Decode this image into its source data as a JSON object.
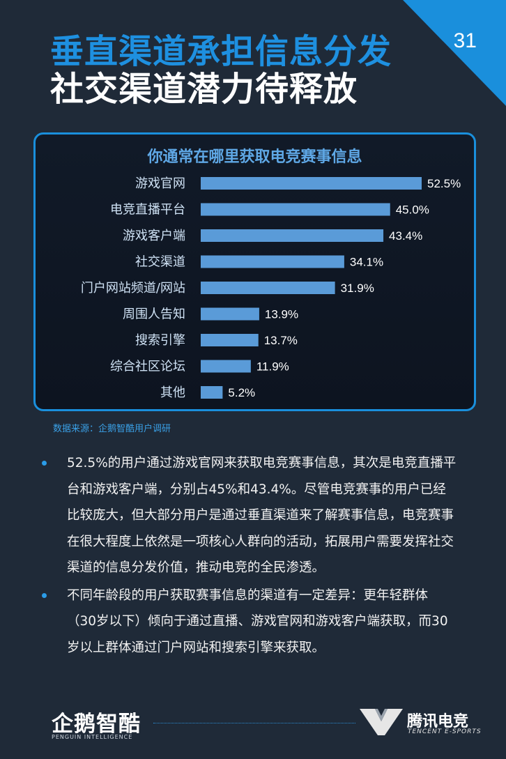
{
  "header": {
    "title_line1": "垂直渠道承担信息分发",
    "title_line2": "社交渠道潜力待释放",
    "page_number": "31",
    "accent_color": "#1a8fdc"
  },
  "chart_data": {
    "type": "bar",
    "orientation": "horizontal",
    "title": "你通常在哪里获取电竞赛事信息",
    "categories": [
      "游戏官网",
      "电竞直播平台",
      "游戏客户端",
      "社交渠道",
      "门户网站频道/网站",
      "周围人告知",
      "搜索引擎",
      "综合社区论坛",
      "其他"
    ],
    "values": [
      52.5,
      45.0,
      43.4,
      34.1,
      31.9,
      13.9,
      13.7,
      11.9,
      5.2
    ],
    "value_labels": [
      "52.5%",
      "45.0%",
      "43.4%",
      "34.1%",
      "31.9%",
      "13.9%",
      "13.7%",
      "11.9%",
      "5.2%"
    ],
    "unit": "%",
    "xlim": [
      0,
      52.5
    ],
    "grid": false,
    "bar_color": "#5a9bd8"
  },
  "source": "数据来源：企鹅智酷用户调研",
  "bullets": [
    "52.5%的用户通过游戏官网来获取电竞赛事信息，其次是电竞直播平台和游戏客户端，分别占45%和43.4%。尽管电竞赛事的用户已经比较庞大，但大部分用户是通过垂直渠道来了解赛事信息，电竞赛事在很大程度上依然是一项核心人群向的活动，拓展用户需要发挥社交渠道的信息分发价值，推动电竞的全民渗透。",
    "不同年龄段的用户获取赛事信息的渠道有一定差异：更年轻群体（30岁以下）倾向于通过直播、游戏官网和游戏客户端获取，而30岁以上群体通过门户网站和搜索引擎来获取。"
  ],
  "footer": {
    "left_logo": "企鹅智酷",
    "left_sub": "PENGUIN INTELLIGENCE",
    "right_logo": "腾讯电竞",
    "right_sub": "TENCENT E-SPORTS"
  }
}
